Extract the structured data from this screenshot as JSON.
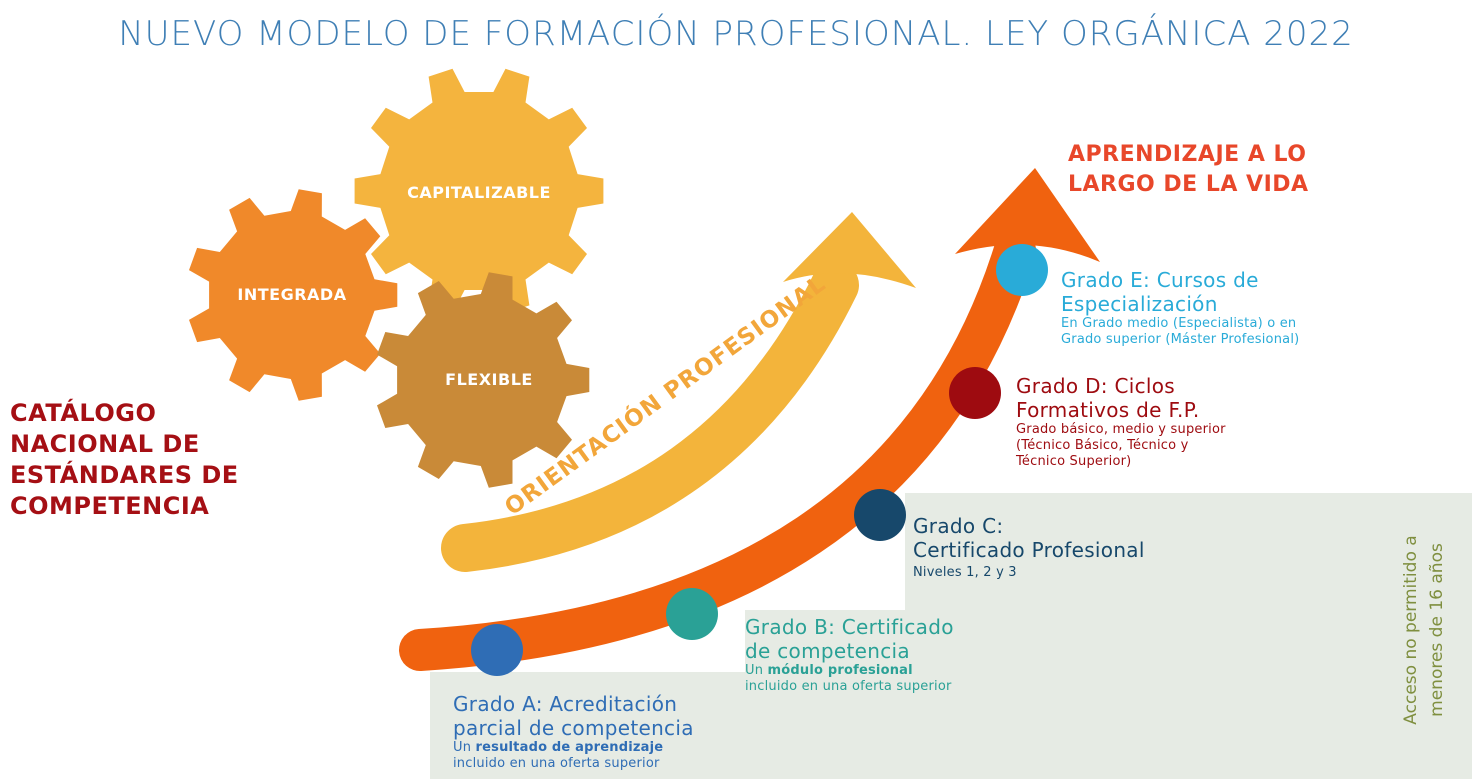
{
  "title": "NUEVO MODELO DE FORMACIÓN PROFESIONAL. LEY ORGÁNICA 2022",
  "colors": {
    "title": "#3f7fb5",
    "catalog": "#a50f14",
    "lifelong": "#e8472a",
    "orange_arrow": "#f0620f",
    "yellow_arrow": "#f3b43b",
    "gear_capitalizable": "#f4b43e",
    "gear_integrada": "#f0892a",
    "gear_flexible": "#c98a38",
    "panel": "#e6ebe4",
    "grade_a": "#2f6db5",
    "grade_b": "#2aa196",
    "grade_c": "#17486b",
    "grade_d": "#9e0b10",
    "grade_e": "#29abd8",
    "access": "#7f8f3f"
  },
  "gears": {
    "capitalizable": "CAPITALIZABLE",
    "integrada": "INTEGRADA",
    "flexible": "FLEXIBLE"
  },
  "catalog_lines": [
    "CATÁLOGO",
    "NACIONAL DE",
    "ESTÁNDARES DE",
    "COMPETENCIA"
  ],
  "orientation_label": "ORIENTACIÓN PROFESIONAL",
  "lifelong_lines": [
    "APRENDIZAJE A LO",
    "LARGO DE LA VIDA"
  ],
  "grades": {
    "a": {
      "title_lines": [
        "Grado A: Acreditación",
        "parcial de competencia"
      ],
      "sub_prefix": "Un ",
      "sub_bold": "resultado de aprendizaje",
      "sub_line2": "incluido en una oferta superior"
    },
    "b": {
      "title_lines": [
        "Grado B: Certificado",
        "de competencia"
      ],
      "sub_prefix": "Un ",
      "sub_bold": "módulo profesional",
      "sub_line2": "incluido en una oferta superior"
    },
    "c": {
      "title_lines": [
        "Grado C:",
        "Certificado Profesional"
      ],
      "sub_lines": [
        "Niveles 1, 2 y 3"
      ]
    },
    "d": {
      "title_lines": [
        "Grado D: Ciclos",
        "Formativos de F.P."
      ],
      "sub_lines": [
        "Grado básico, medio y superior",
        "(Técnico Básico, Técnico y",
        "Técnico Superior)"
      ]
    },
    "e": {
      "title_lines": [
        "Grado E: Cursos de",
        "Especialización"
      ],
      "sub_lines": [
        "En Grado medio (Especialista) o en",
        "Grado superior (Máster Profesional)"
      ]
    }
  },
  "access_lines": [
    "Acceso no permitido a",
    "menores de 16 años"
  ]
}
